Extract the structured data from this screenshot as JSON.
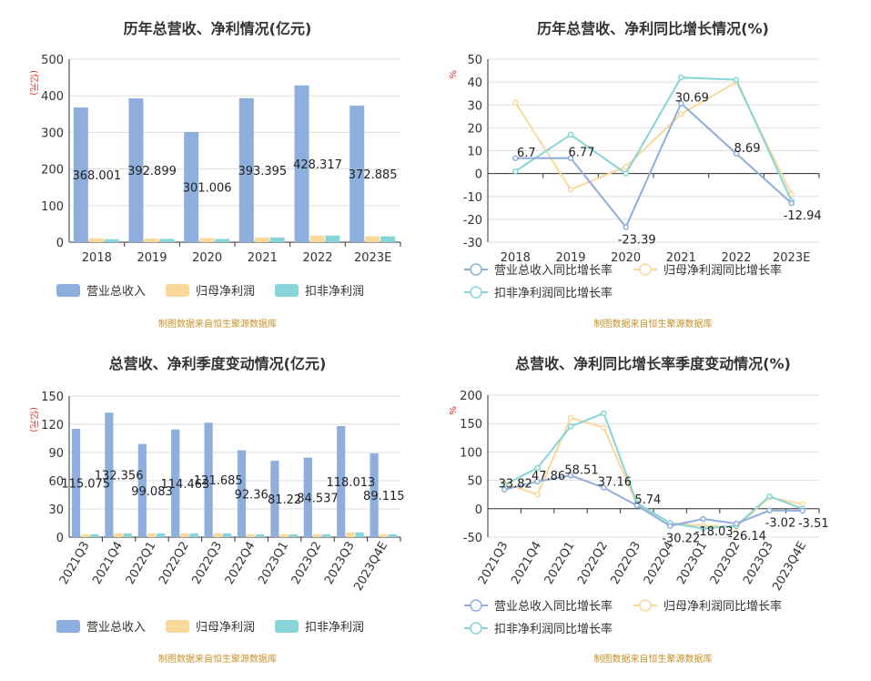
{
  "panels": [
    {
      "title": "历年总营收、净利情况(亿元)",
      "footer": "制图数据来自恒生聚源数据库"
    },
    {
      "title": "历年总营收、净利同比增长情况(%)",
      "footer": "制图数据来自恒生聚源数据库"
    },
    {
      "title": "总营收、净利季度变动情况(亿元)",
      "footer": "制图数据来自恒生聚源数据库"
    },
    {
      "title": "总营收、净利同比增长率季度变动情况(%)",
      "footer": "制图数据来自恒生聚源数据库"
    }
  ],
  "colors": {
    "revenue": "#8eaedd",
    "net": "#f9d89a",
    "deducted": "#86d5d8",
    "axis": "#333333",
    "grid": "#dddddd",
    "unit": "#e03030"
  },
  "chart_data": [
    {
      "type": "bar",
      "title": "历年总营收、净利情况(亿元)",
      "ylabel": "(亿元)",
      "ylim": [
        0,
        500
      ],
      "yticks": [
        0,
        100,
        200,
        300,
        400,
        500
      ],
      "categories": [
        "2018",
        "2019",
        "2020",
        "2021",
        "2022",
        "2023E"
      ],
      "series": [
        {
          "name": "营业总收入",
          "values": [
            368.001,
            392.899,
            301.006,
            393.395,
            428.317,
            372.885
          ],
          "labels": [
            "368.001",
            "392.899",
            "301.006",
            "393.395",
            "428.317",
            "372.885"
          ]
        },
        {
          "name": "归母净利润",
          "values": [
            10,
            10,
            11,
            13,
            18,
            16
          ]
        },
        {
          "name": "扣非净利润",
          "values": [
            8,
            9,
            9,
            13,
            18,
            16
          ]
        }
      ],
      "legend": "bottom"
    },
    {
      "type": "line",
      "title": "历年总营收、净利同比增长情况(%)",
      "ylabel": "%",
      "ylim": [
        -30,
        50
      ],
      "yticks": [
        -30,
        -20,
        -10,
        0,
        10,
        20,
        30,
        40,
        50
      ],
      "categories": [
        "2018",
        "2019",
        "2020",
        "2021",
        "2022",
        "2023E"
      ],
      "series": [
        {
          "name": "营业总收入同比增长率",
          "values": [
            6.7,
            6.77,
            -23.39,
            30.69,
            8.69,
            -12.94
          ],
          "labels": [
            "6.7",
            "6.77",
            "-23.39",
            "30.69",
            "8.69",
            "-12.94"
          ]
        },
        {
          "name": "归母净利润同比增长率",
          "values": [
            31,
            -7,
            3,
            26,
            40,
            -9
          ]
        },
        {
          "name": "扣非净利润同比增长率",
          "values": [
            1,
            17,
            0,
            42,
            41,
            -12
          ]
        }
      ],
      "legend": "bottom"
    },
    {
      "type": "bar",
      "title": "总营收、净利季度变动情况(亿元)",
      "ylabel": "(亿元)",
      "ylim": [
        0,
        150
      ],
      "yticks": [
        0,
        30,
        60,
        90,
        120,
        150
      ],
      "categories": [
        "2021Q3",
        "2021Q4",
        "2022Q1",
        "2022Q2",
        "2022Q3",
        "2022Q4",
        "2023Q1",
        "2023Q2",
        "2023Q3",
        "2023Q4E"
      ],
      "series": [
        {
          "name": "营业总收入",
          "values": [
            115.075,
            132.356,
            99.083,
            114.463,
            121.685,
            92.36,
            81.22,
            84.537,
            118.013,
            89.115
          ],
          "labels": [
            "115.075",
            "132.356",
            "99.083",
            "114.463",
            "121.685",
            "92.36",
            "81.22",
            "84.537",
            "118.013",
            "89.115"
          ]
        },
        {
          "name": "归母净利润",
          "values": [
            3,
            4,
            4,
            4,
            4,
            3,
            3,
            3,
            5,
            3
          ]
        },
        {
          "name": "扣非净利润",
          "values": [
            3,
            4,
            4,
            4,
            4,
            3,
            3,
            3,
            5,
            3
          ]
        }
      ],
      "legend": "bottom"
    },
    {
      "type": "line",
      "title": "总营收、净利同比增长率季度变动情况(%)",
      "ylabel": "%",
      "ylim": [
        -50,
        200
      ],
      "yticks": [
        -50,
        0,
        50,
        100,
        150,
        200
      ],
      "categories": [
        "2021Q3",
        "2021Q4",
        "2022Q1",
        "2022Q2",
        "2022Q3",
        "2022Q4",
        "2023Q1",
        "2023Q2",
        "2023Q3",
        "2023Q4E"
      ],
      "series": [
        {
          "name": "营业总收入同比增长率",
          "values": [
            33.82,
            47.86,
            58.51,
            37.16,
            5.74,
            -30.22,
            -18.03,
            -26.14,
            -3.02,
            -3.51
          ],
          "labels": [
            "33.82",
            "47.86",
            "58.51",
            "37.16",
            "5.74",
            "-30.22",
            "-18.03",
            "-26.14",
            "-3.02",
            "-3.51"
          ]
        },
        {
          "name": "归母净利润同比增长率",
          "values": [
            45,
            25,
            160,
            143,
            8,
            -25,
            -30,
            -32,
            20,
            8
          ]
        },
        {
          "name": "扣非净利润同比增长率",
          "values": [
            42,
            72,
            145,
            168,
            10,
            -25,
            -35,
            -30,
            22,
            0
          ]
        }
      ],
      "legend": "bottom"
    }
  ]
}
